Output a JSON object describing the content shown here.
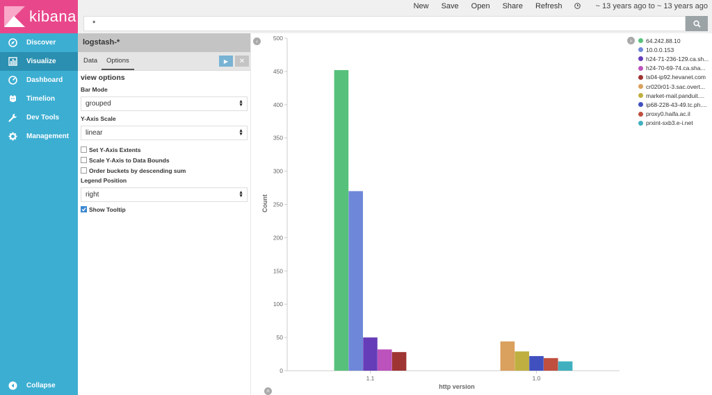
{
  "app": {
    "brand": "kibana",
    "brand_color": "#e8488b",
    "sidebar_color": "#3caed2"
  },
  "sidebar": {
    "items": [
      {
        "label": "Discover",
        "icon": "compass-icon"
      },
      {
        "label": "Visualize",
        "icon": "bar-chart-icon",
        "active": true
      },
      {
        "label": "Dashboard",
        "icon": "dashboard-icon"
      },
      {
        "label": "Timelion",
        "icon": "timelion-icon"
      },
      {
        "label": "Dev Tools",
        "icon": "wrench-icon"
      },
      {
        "label": "Management",
        "icon": "gear-icon"
      }
    ],
    "collapse_label": "Collapse"
  },
  "topbar": {
    "new_label": "New",
    "save_label": "Save",
    "open_label": "Open",
    "share_label": "Share",
    "refresh_label": "Refresh",
    "time_range": "~ 13 years ago to ~ 13 years ago"
  },
  "search": {
    "query": "*"
  },
  "editor": {
    "index_pattern": "logstash-*",
    "tabs": [
      {
        "label": "Data",
        "active": false
      },
      {
        "label": "Options",
        "active": true
      }
    ],
    "section_title": "view options",
    "bar_mode_label": "Bar Mode",
    "bar_mode_value": "grouped",
    "y_axis_scale_label": "Y-Axis Scale",
    "y_axis_scale_value": "linear",
    "checkboxes": [
      {
        "label": "Set Y-Axis Extents",
        "checked": false
      },
      {
        "label": "Scale Y-Axis to Data Bounds",
        "checked": false
      },
      {
        "label": "Order buckets by descending sum",
        "checked": false
      }
    ],
    "legend_position_label": "Legend Position",
    "legend_position_value": "right",
    "show_tooltip_label": "Show Tooltip",
    "show_tooltip_checked": true
  },
  "chart_data": {
    "type": "bar",
    "xlabel": "http version",
    "ylabel": "Count",
    "ylim": [
      0,
      500
    ],
    "yticks": [
      0,
      50,
      100,
      150,
      200,
      250,
      300,
      350,
      400,
      450,
      500
    ],
    "legend_position": "right",
    "grid": false,
    "categories": [
      "1.1",
      "1.0"
    ],
    "series": [
      {
        "name": "64.242.88.10",
        "color": "#57c17b",
        "values": [
          452,
          0
        ]
      },
      {
        "name": "10.0.0.153",
        "color": "#6f87d8",
        "values": [
          270,
          0
        ]
      },
      {
        "name": "h24-71-236-129.ca.sh...",
        "color": "#663db8",
        "values": [
          50,
          0
        ]
      },
      {
        "name": "h24-70-69-74.ca.sha...",
        "color": "#bc52bc",
        "values": [
          32,
          0
        ]
      },
      {
        "name": "ts04-ip92.hevanet.com",
        "color": "#9e3533",
        "values": [
          28,
          0
        ]
      },
      {
        "name": "cr020r01-3.sac.overt...",
        "color": "#daa05d",
        "values": [
          0,
          44
        ]
      },
      {
        "name": "market-mail.panduit....",
        "color": "#bfaf40",
        "values": [
          0,
          29
        ]
      },
      {
        "name": "ip68-228-43-49.tc.ph....",
        "color": "#4050bf",
        "values": [
          0,
          22
        ]
      },
      {
        "name": "proxy0.haifa.ac.il",
        "color": "#bf5040",
        "values": [
          0,
          19
        ]
      },
      {
        "name": "prxint-sxb3.e-i.net",
        "color": "#40b0bf",
        "values": [
          0,
          14
        ]
      }
    ]
  }
}
